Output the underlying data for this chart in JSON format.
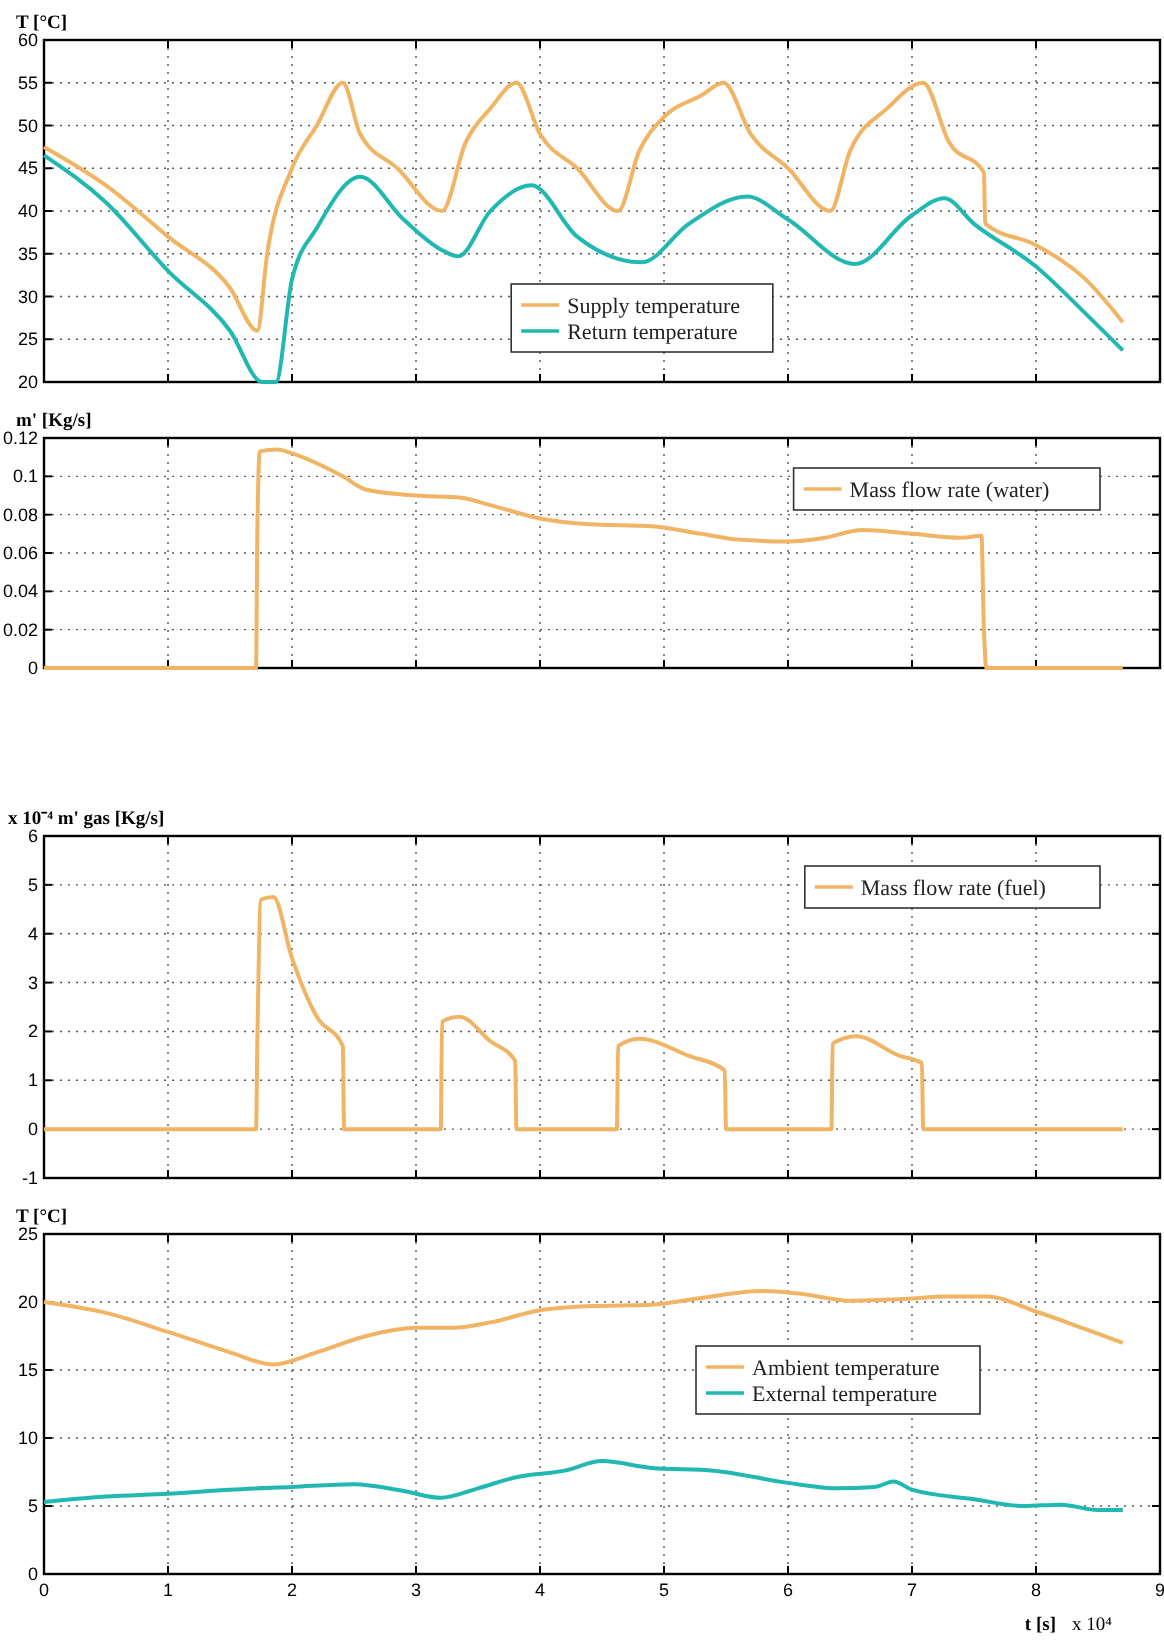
{
  "chart_data": [
    {
      "type": "line",
      "ylabel": "T [°C]",
      "xlim": [
        0,
        9
      ],
      "xticks": [
        0,
        1,
        2,
        3,
        4,
        5,
        6,
        7,
        8,
        9
      ],
      "ylim": [
        20,
        60
      ],
      "yticks": [
        20,
        25,
        30,
        35,
        40,
        45,
        50,
        55,
        60
      ],
      "grid": true,
      "tick_labels": "y",
      "legend": "bottom",
      "marker": "none",
      "line_style": "solid",
      "series": [
        {
          "name": "Supply temperature",
          "color": "#f0b464",
          "x": [
            0,
            0.5,
            1,
            1.5,
            1.72,
            1.8,
            2,
            2.2,
            2.41,
            2.55,
            2.85,
            3.21,
            3.4,
            3.6,
            3.81,
            4,
            4.3,
            4.63,
            4.8,
            5,
            5.3,
            5.48,
            5.7,
            6,
            6.34,
            6.5,
            6.8,
            7.09,
            7.3,
            7.58,
            7.59,
            8,
            8.4,
            8.7
          ],
          "values": [
            47.5,
            43,
            37,
            31,
            26,
            35,
            45,
            50,
            55,
            49,
            45,
            40,
            48,
            52,
            55,
            49,
            45,
            40,
            47,
            51,
            53.5,
            55,
            49,
            45,
            40,
            47,
            52,
            55,
            48,
            44.5,
            38.5,
            36,
            32,
            27
          ]
        },
        {
          "name": "Return temperature",
          "color": "#20b8b0",
          "x": [
            0,
            0.5,
            1,
            1.5,
            1.76,
            1.87,
            2,
            2.2,
            2.55,
            2.9,
            3.2,
            3.34,
            3.6,
            3.93,
            4.3,
            4.82,
            5.2,
            5.67,
            6,
            6.54,
            7,
            7.26,
            7.5,
            8,
            8.4,
            8.7
          ],
          "values": [
            46.5,
            41,
            33,
            26,
            20,
            20,
            32,
            38,
            44,
            39,
            35.5,
            34.7,
            40,
            43,
            37,
            34,
            38.5,
            41.7,
            39,
            33.8,
            39.5,
            41.5,
            38.5,
            33.5,
            28,
            23.7
          ]
        }
      ]
    },
    {
      "type": "line",
      "ylabel": "m' [Kg/s]",
      "xlim": [
        0,
        9
      ],
      "xticks": [
        0,
        1,
        2,
        3,
        4,
        5,
        6,
        7,
        8,
        9
      ],
      "ylim": [
        0,
        0.12
      ],
      "yticks": [
        0,
        0.02,
        0.04,
        0.06,
        0.08,
        0.1,
        0.12
      ],
      "grid": true,
      "tick_labels": "y",
      "legend": "top right",
      "marker": "none",
      "line_style": "solid",
      "series": [
        {
          "name": "Mass flow rate (water)",
          "color": "#f0b464",
          "x": [
            0,
            1.71,
            1.72,
            1.74,
            1.88,
            2,
            2.41,
            2.6,
            3,
            3.35,
            3.6,
            4,
            4.4,
            4.9,
            5.3,
            5.6,
            6,
            6.3,
            6.6,
            7,
            7.4,
            7.56,
            7.58,
            7.6,
            8.7
          ],
          "values": [
            0,
            0,
            0.068,
            0.113,
            0.114,
            0.112,
            0.1,
            0.093,
            0.09,
            0.089,
            0.085,
            0.078,
            0.075,
            0.074,
            0.07,
            0.067,
            0.066,
            0.068,
            0.072,
            0.07,
            0.068,
            0.069,
            0.02,
            0,
            0
          ]
        }
      ]
    },
    {
      "type": "line",
      "ylabel": "x 10⁻⁴ m' gas [Kg/s]",
      "xlim": [
        0,
        9
      ],
      "xticks": [
        0,
        1,
        2,
        3,
        4,
        5,
        6,
        7,
        8,
        9
      ],
      "ylim": [
        -1,
        6
      ],
      "yticks": [
        -1,
        0,
        1,
        2,
        3,
        4,
        5,
        6
      ],
      "grid": true,
      "tick_labels": "y",
      "legend": "top right",
      "marker": "none",
      "line_style": "solid",
      "series": [
        {
          "name": "Mass flow rate (fuel)",
          "color": "#f0b464",
          "x": [
            0,
            1.71,
            1.72,
            1.75,
            1.85,
            2,
            2.2,
            2.41,
            2.42,
            3.2,
            3.21,
            3.35,
            3.6,
            3.8,
            3.81,
            4.62,
            4.63,
            4.8,
            5.2,
            5.49,
            5.5,
            6.35,
            6.36,
            6.55,
            6.9,
            7.08,
            7.09,
            8.7
          ],
          "values": [
            0,
            0,
            1.7,
            4.7,
            4.75,
            3.5,
            2.3,
            1.7,
            0,
            0,
            2.2,
            2.3,
            1.8,
            1.4,
            0,
            0,
            1.7,
            1.85,
            1.5,
            1.2,
            0,
            0,
            1.75,
            1.9,
            1.5,
            1.35,
            0,
            0
          ]
        }
      ]
    },
    {
      "type": "line",
      "ylabel": "T [°C]",
      "xlabel": "t [s]",
      "annotations": [
        "x 10⁴"
      ],
      "xlim": [
        0,
        9
      ],
      "xticks": [
        0,
        1,
        2,
        3,
        4,
        5,
        6,
        7,
        8,
        9
      ],
      "ylim": [
        0,
        25
      ],
      "yticks": [
        0,
        5,
        10,
        15,
        20,
        25
      ],
      "grid": true,
      "legend": "right",
      "marker": "none",
      "line_style": "solid",
      "series": [
        {
          "name": "Ambient temperature",
          "color": "#f0b464",
          "x": [
            0,
            0.5,
            1,
            1.5,
            1.85,
            2.2,
            2.6,
            3,
            3.3,
            3.6,
            4,
            4.4,
            4.9,
            5.3,
            5.8,
            6.1,
            6.5,
            6.9,
            7.3,
            7.6,
            8,
            8.4,
            8.7
          ],
          "values": [
            20,
            19.2,
            17.8,
            16.3,
            15.4,
            16.3,
            17.5,
            18.1,
            18.1,
            18.5,
            19.4,
            19.7,
            19.8,
            20.3,
            20.8,
            20.6,
            20.1,
            20.2,
            20.4,
            20.4,
            19.3,
            18,
            17
          ]
        },
        {
          "name": "External temperature",
          "color": "#20b8b0",
          "x": [
            0,
            0.5,
            1,
            1.5,
            2,
            2.5,
            2.9,
            3.2,
            3.5,
            3.8,
            4.2,
            4.5,
            4.9,
            5.4,
            6,
            6.4,
            6.7,
            6.85,
            7,
            7.5,
            7.9,
            8.2,
            8.5,
            8.7
          ],
          "values": [
            5.3,
            5.7,
            5.9,
            6.2,
            6.4,
            6.6,
            6.1,
            5.6,
            6.3,
            7.1,
            7.6,
            8.3,
            7.8,
            7.6,
            6.7,
            6.3,
            6.4,
            6.8,
            6.2,
            5.5,
            5,
            5.1,
            4.7,
            4.7
          ]
        }
      ]
    }
  ]
}
